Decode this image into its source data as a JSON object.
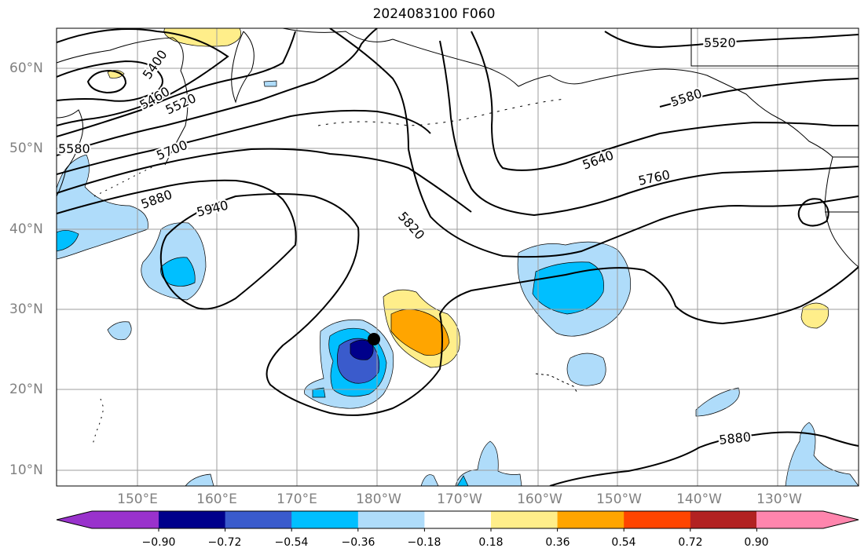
{
  "title": "2024083100 F060",
  "lat_labels": [
    "60°N",
    "50°N",
    "40°N",
    "30°N",
    "20°N",
    "10°N"
  ],
  "lon_labels": [
    "150°E",
    "160°E",
    "170°E",
    "180°W",
    "170°W",
    "160°W",
    "150°W",
    "140°W",
    "130°W"
  ],
  "contour_labels": [
    "5400",
    "5460",
    "5520",
    "5580",
    "5700",
    "5880",
    "5940",
    "5820",
    "5640",
    "5760",
    "5580",
    "5520",
    "5880"
  ],
  "colorbar": {
    "tick_labels": [
      "−0.90",
      "−0.72",
      "−0.54",
      "−0.36",
      "−0.18",
      "0.18",
      "0.36",
      "0.54",
      "0.72",
      "0.90"
    ],
    "colors": [
      "#9932cc",
      "#00008b",
      "#3a5bcc",
      "#00bfff",
      "#afdcfa",
      "#ffffff",
      "#ffee8a",
      "#ffa500",
      "#ff4500",
      "#b22222",
      "#ff85ad"
    ]
  },
  "fill_colors": {
    "neg_weak": "#afdcfa",
    "neg_mid": "#00bfff",
    "neg_strong": "#3a5bcc",
    "neg_max": "#00008b",
    "pos_weak": "#ffee8a",
    "pos_mid": "#ffa500"
  }
}
